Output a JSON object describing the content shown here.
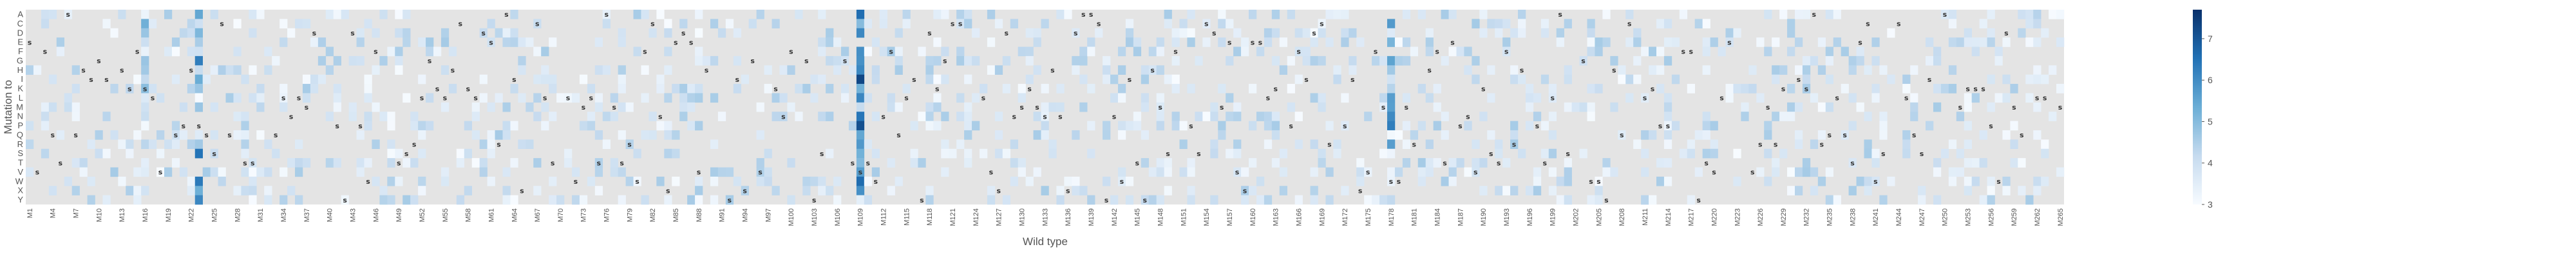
{
  "chart_data": {
    "type": "heatmap",
    "xlabel": "Wild type",
    "ylabel": "Mutation to",
    "rows": [
      "A",
      "C",
      "D",
      "E",
      "F",
      "G",
      "H",
      "I",
      "K",
      "L",
      "M",
      "N",
      "P",
      "Q",
      "R",
      "S",
      "T",
      "V",
      "W",
      "X",
      "Y"
    ],
    "x_range": [
      1,
      265
    ],
    "x_tick_prefix": "M",
    "x_tick_step": 3,
    "colorbar": {
      "min": 3,
      "max": 7.7,
      "ticks": [
        3,
        4,
        5,
        6,
        7
      ]
    },
    "background_value": "missing",
    "marker": "s",
    "marker_meaning": "wild-type residue",
    "colors": {
      "missing": "#e4e4e4",
      "low": "#f7fbff",
      "high": "#08306b",
      "mid": "#6baed6"
    },
    "columns_of_note": [
      {
        "x": 16,
        "value_max": 5.5
      },
      {
        "x": 23,
        "value_max": 6.5
      },
      {
        "x": 109,
        "value_max": 7.6
      },
      {
        "x": 178,
        "value_max": 6.8
      }
    ],
    "marker_count": 235
  }
}
